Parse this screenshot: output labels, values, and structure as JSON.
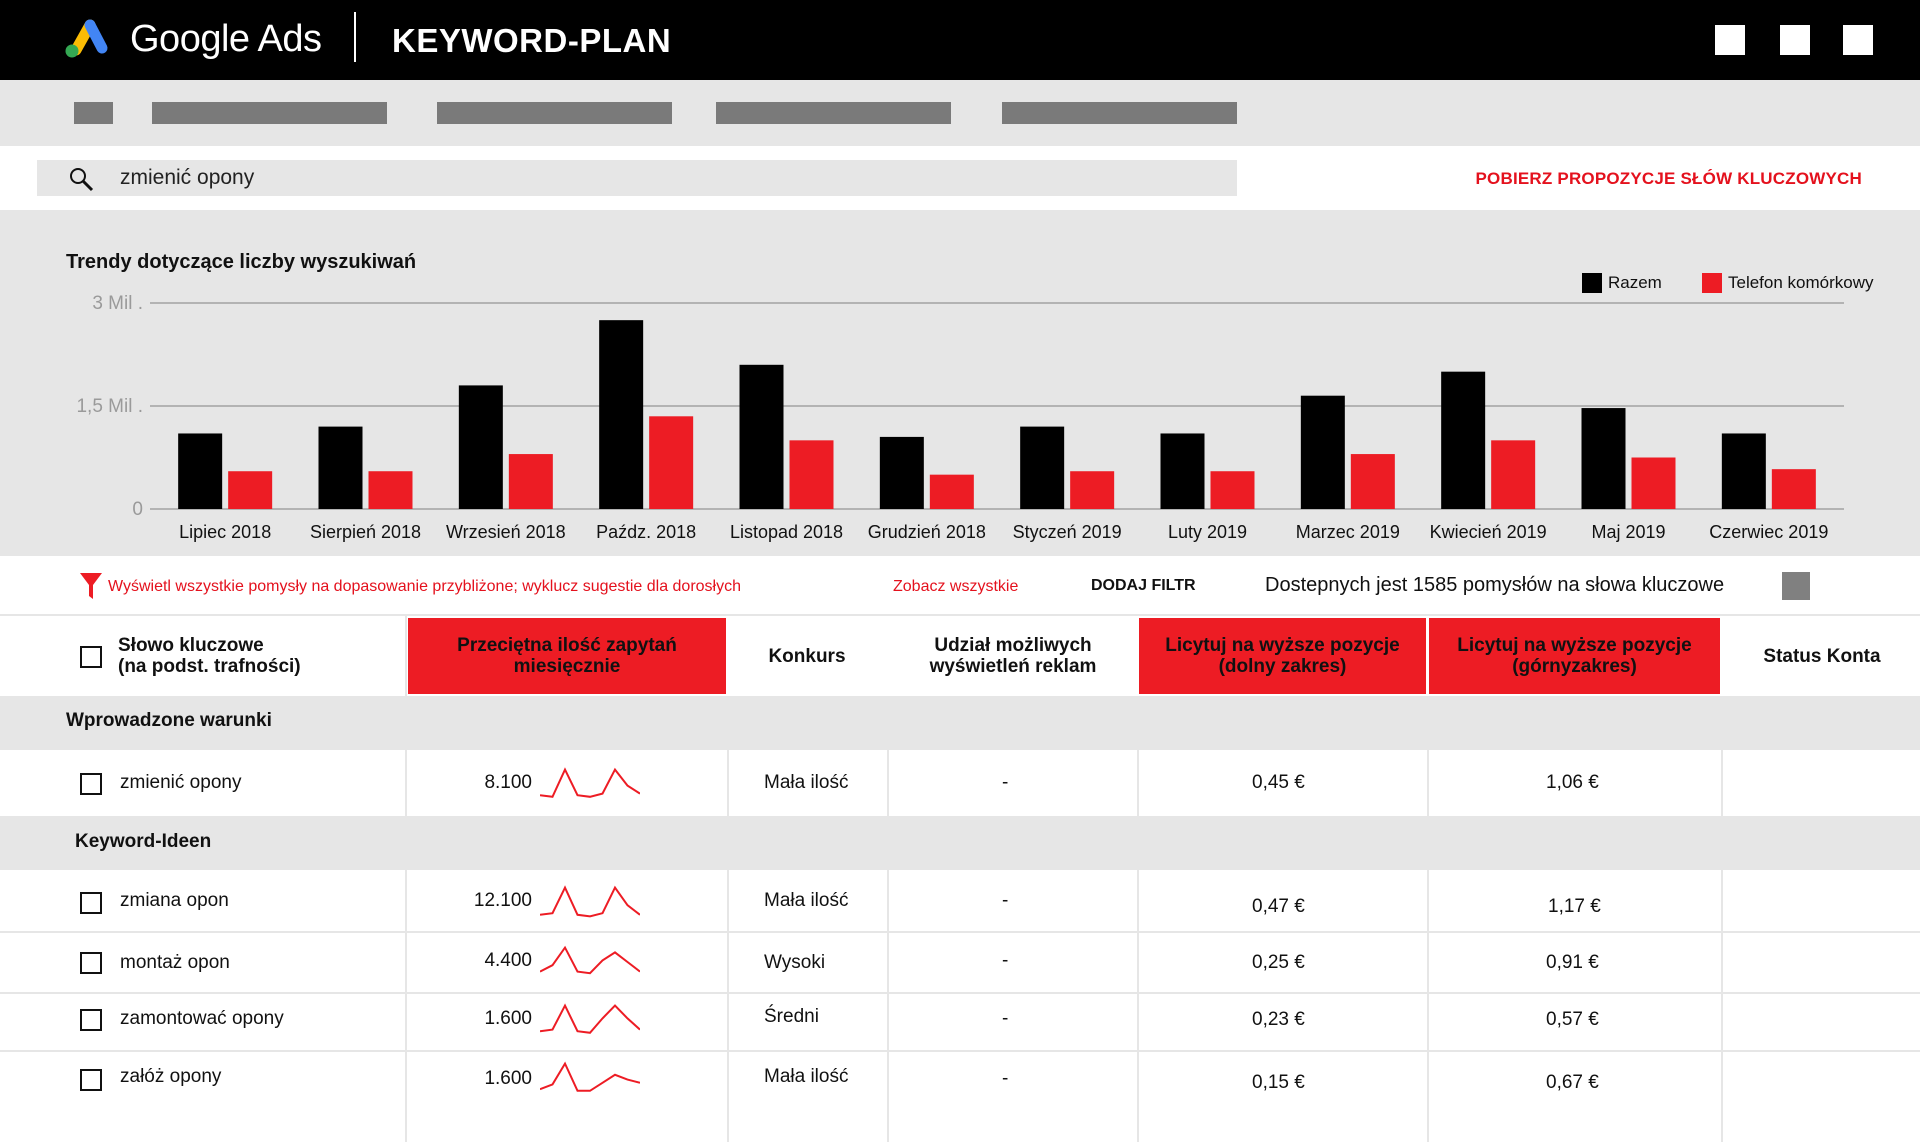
{
  "header": {
    "brand": "Google Ads",
    "plan_title": "KEYWORD-PLAN"
  },
  "search": {
    "query": "zmienić opony",
    "action": "POBIERZ PROPOZYCJE SŁÓW KLUCZOWYCH"
  },
  "chart_data": {
    "type": "bar",
    "title": "Trendy dotyczące liczby wyszukiwań",
    "categories": [
      "Lipiec 2018",
      "Sierpień 2018",
      "Wrzesień 2018",
      "Paźdz. 2018",
      "Listopad 2018",
      "Grudzień 2018",
      "Styczeń 2019",
      "Luty 2019",
      "Marzec 2019",
      "Kwiecień 2019",
      "Maj 2019",
      "Czerwiec 2019"
    ],
    "series": [
      {
        "name": "Razem",
        "color": "#000000",
        "values": [
          1.1,
          1.2,
          1.8,
          2.75,
          2.1,
          1.05,
          1.2,
          1.1,
          1.65,
          2.0,
          1.47,
          1.1
        ]
      },
      {
        "name": "Telefon komórkowy",
        "color": "#ed1c24",
        "values": [
          0.55,
          0.55,
          0.8,
          1.35,
          1.0,
          0.5,
          0.55,
          0.55,
          0.8,
          1.0,
          0.75,
          0.58
        ]
      }
    ],
    "ylim": [
      0,
      3
    ],
    "yticks": [
      {
        "value": 0,
        "label": "0"
      },
      {
        "value": 1.5,
        "label": "1,5 Mil ."
      },
      {
        "value": 3,
        "label": "3 Mil ."
      }
    ],
    "grid": true,
    "legend_position": "top-right"
  },
  "filters": {
    "filter_text": "Wyświetl wszystkie pomysły na dopasowanie przybliżone; wyklucz sugestie dla dorosłych",
    "see_all": "Zobacz wszystkie",
    "add_filter": "DODAJ FILTR",
    "available": "Dostepnych jest 1585 pomysłów na słowa kluczowe"
  },
  "table": {
    "columns": {
      "keyword_line1": "Słowo kluczowe",
      "keyword_line2": "(na podst. trafności)",
      "avg_line1": "Przeciętna ilość zapytań",
      "avg_line2": "miesięcznie",
      "competition": "Konkurs",
      "share_line1": "Udział możliwych",
      "share_line2": "wyświetleń reklam",
      "bid_low_line1": "Licytuj na wyższe pozycje",
      "bid_low_line2": "(dolny zakres)",
      "bid_high_line1": "Licytuj na wyższe pozycje",
      "bid_high_line2": "(górnyzakres)",
      "status": "Status Konta"
    },
    "section_entered": "Wprowadzone warunki",
    "entered_row": {
      "keyword": "zmienić opony",
      "avg": "8.100",
      "trend": [
        0.15,
        0.1,
        0.95,
        0.15,
        0.1,
        0.2,
        0.95,
        0.45,
        0.2
      ],
      "competition": "Mała ilość",
      "share": "-",
      "bid_low": "0,45 €",
      "bid_high": "1,06 €"
    },
    "section_ideas": "Keyword-Ideen",
    "idea_rows": [
      {
        "keyword": "zmiana opon",
        "avg": "12.100",
        "trend": [
          0.1,
          0.15,
          0.95,
          0.1,
          0.05,
          0.15,
          0.95,
          0.4,
          0.1
        ],
        "competition": "Mała ilość",
        "share": "-",
        "bid_low": "0,47 €",
        "bid_high": "1,17 €"
      },
      {
        "keyword": "montaż opon",
        "avg": "4.400",
        "trend": [
          0.2,
          0.4,
          0.95,
          0.2,
          0.15,
          0.55,
          0.8,
          0.5,
          0.2
        ],
        "competition": "Wysoki",
        "share": "-",
        "bid_low": "0,25 €",
        "bid_high": "0,91 €"
      },
      {
        "keyword": "zamontować opony",
        "avg": "1.600",
        "trend": [
          0.15,
          0.2,
          0.95,
          0.15,
          0.1,
          0.55,
          0.95,
          0.55,
          0.2
        ],
        "competition": "Średni",
        "share": "-",
        "bid_low": "0,23 €",
        "bid_high": "0,57 €"
      },
      {
        "keyword": "załóż opony",
        "avg": "1.600",
        "trend": [
          0.15,
          0.3,
          0.95,
          0.1,
          0.1,
          0.35,
          0.6,
          0.45,
          0.35
        ],
        "competition": "Mała ilość",
        "share": "-",
        "bid_low": "0,15 €",
        "bid_high": "0,67 €"
      }
    ]
  }
}
